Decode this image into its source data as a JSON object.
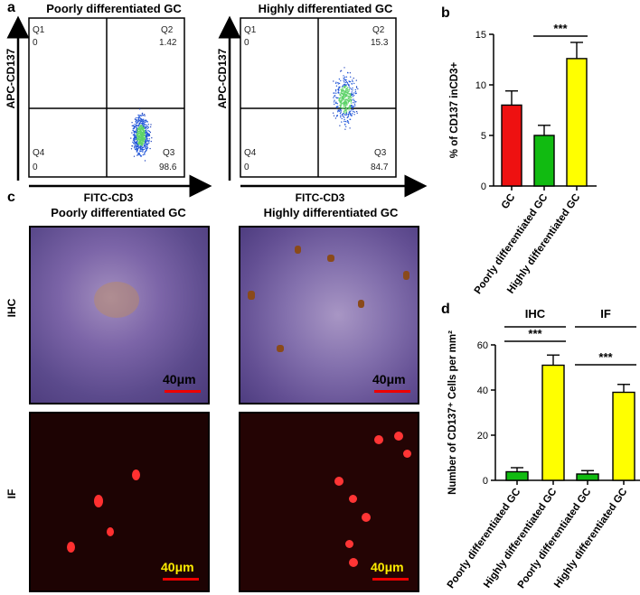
{
  "panel_labels": {
    "a": "a",
    "b": "b",
    "c": "c",
    "d": "d"
  },
  "flow": {
    "poorly": {
      "title": "Poorly differentiated GC",
      "ylabel": "APC-CD137",
      "xlabel": "FITC-CD3",
      "q1_label": "Q1",
      "q1_value": "0",
      "q2_label": "Q2",
      "q2_value": "1.42",
      "q3_label": "Q3",
      "q3_value": "98.6",
      "q4_label": "Q4",
      "q4_value": "0"
    },
    "highly": {
      "title": "Highly differentiated GC",
      "ylabel": "APC-CD137",
      "xlabel": "FITC-CD3",
      "q1_label": "Q1",
      "q1_value": "0",
      "q2_label": "Q2",
      "q2_value": "15.3",
      "q3_label": "Q3",
      "q3_value": "84.7",
      "q4_label": "Q4",
      "q4_value": "0"
    }
  },
  "micro": {
    "col1_title": "Poorly differentiated GC",
    "col2_title": "Highly differentiated GC",
    "row1_label": "IHC",
    "row2_label": "IF",
    "scale": "40μm"
  },
  "chart_data": [
    {
      "type": "bar",
      "panel": "b",
      "categories": [
        "GC",
        "Poorly differentiated GC",
        "Highly differentiated GC"
      ],
      "values": [
        8.0,
        5.0,
        12.6
      ],
      "errors": [
        1.4,
        1.0,
        1.6
      ],
      "colors": [
        "#ee1111",
        "#11bb11",
        "#ffff00"
      ],
      "ylabel": "% of CD137 inCD3+",
      "ylim": [
        0,
        15
      ],
      "yticks": [
        0,
        5,
        10,
        15
      ],
      "annotations": [
        {
          "text": "***",
          "between": [
            1,
            2
          ]
        }
      ]
    },
    {
      "type": "bar",
      "panel": "d",
      "categories": [
        "Poorly differentiated GC",
        "Highly differentiated GC",
        "Poorly differentiated GC",
        "Highly differentiated GC"
      ],
      "values": [
        3.8,
        51,
        2.8,
        39
      ],
      "errors": [
        1.8,
        4.5,
        1.5,
        3.5
      ],
      "colors": [
        "#11bb11",
        "#ffff00",
        "#11bb11",
        "#ffff00"
      ],
      "groups": [
        "IHC",
        "IF"
      ],
      "ylabel": "Number of CD137⁺ Cells per mm²",
      "ylim": [
        0,
        60
      ],
      "yticks": [
        0,
        20,
        40,
        60
      ],
      "annotations": [
        {
          "text": "***",
          "between": [
            0,
            1
          ]
        },
        {
          "text": "***",
          "between": [
            2,
            3
          ]
        }
      ]
    }
  ]
}
